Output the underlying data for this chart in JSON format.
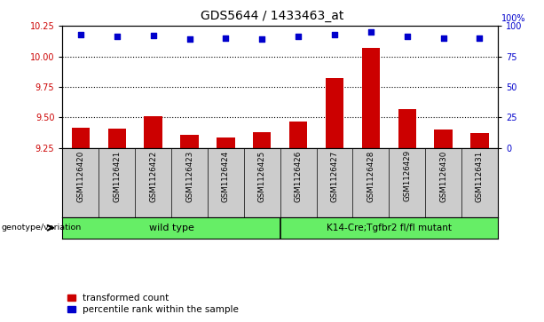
{
  "title": "GDS5644 / 1433463_at",
  "samples": [
    "GSM1126420",
    "GSM1126421",
    "GSM1126422",
    "GSM1126423",
    "GSM1126424",
    "GSM1126425",
    "GSM1126426",
    "GSM1126427",
    "GSM1126428",
    "GSM1126429",
    "GSM1126430",
    "GSM1126431"
  ],
  "bar_values": [
    9.42,
    9.41,
    9.51,
    9.36,
    9.34,
    9.38,
    9.47,
    9.82,
    10.07,
    9.57,
    9.4,
    9.37
  ],
  "dot_values": [
    93,
    91,
    92,
    89,
    90,
    89,
    91,
    93,
    95,
    91,
    90,
    90
  ],
  "bar_color": "#cc0000",
  "dot_color": "#0000cc",
  "ylim_left": [
    9.25,
    10.25
  ],
  "ylim_right": [
    0,
    100
  ],
  "yticks_left": [
    9.25,
    9.5,
    9.75,
    10.0,
    10.25
  ],
  "yticks_right": [
    0,
    25,
    50,
    75,
    100
  ],
  "grid_values": [
    9.5,
    9.75,
    10.0
  ],
  "group1_label": "wild type",
  "group2_label": "K14-Cre;Tgfbr2 fl/fl mutant",
  "group1_count": 6,
  "group2_count": 6,
  "genotype_label": "genotype/variation",
  "legend_bar": "transformed count",
  "legend_dot": "percentile rank within the sample",
  "bg_color": "#cccccc",
  "group_bg": "#66ee66",
  "title_fontsize": 10,
  "tick_fontsize": 7,
  "bar_width": 0.5
}
